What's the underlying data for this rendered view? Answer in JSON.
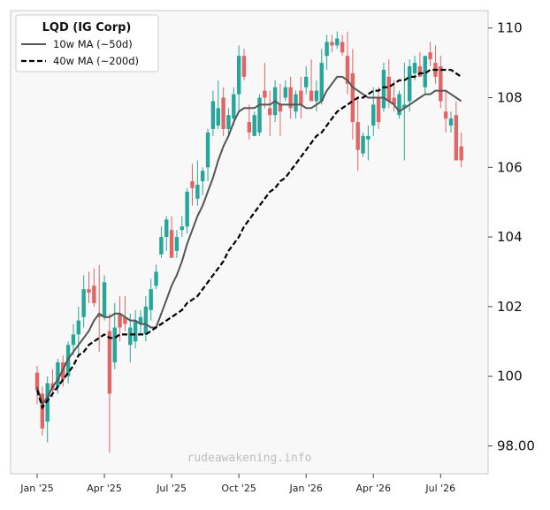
{
  "chart_data": {
    "type": "candlestick",
    "ticker_label": "LQD (IG Corp)",
    "watermark": "rudeawakening.info",
    "colors": {
      "up": "#26a69a",
      "down": "#e06666",
      "ma10": "#555555",
      "ma40": "#000000",
      "background": "#f8f8f8"
    },
    "y_axis": {
      "side": "right",
      "ylim": [
        97.2,
        110.5
      ],
      "ticks": [
        98,
        100,
        102,
        104,
        106,
        108,
        110
      ],
      "tick_labels": [
        "98.00",
        "100",
        "102",
        "104",
        "106",
        "108",
        "110"
      ]
    },
    "x_axis": {
      "tick_weeks": [
        0,
        13,
        26,
        39,
        52,
        65,
        78
      ],
      "tick_labels": [
        "Jan '25",
        "Apr '25",
        "Jul '25",
        "Oct '25",
        "Jan '26",
        "Apr '26",
        "Jul '26"
      ]
    },
    "legend": {
      "placement": "top-left",
      "entries": [
        {
          "label": "10w MA (~50d)",
          "style": "solid"
        },
        {
          "label": "40w MA (~200d)",
          "style": "dashed"
        }
      ]
    },
    "candles": [
      [
        100.1,
        100.3,
        99.2,
        99.6
      ],
      [
        99.5,
        99.7,
        98.3,
        98.5
      ],
      [
        98.7,
        100.0,
        98.1,
        99.8
      ],
      [
        99.8,
        100.2,
        99.4,
        99.6
      ],
      [
        99.7,
        100.5,
        99.5,
        100.4
      ],
      [
        100.4,
        100.6,
        99.7,
        99.9
      ],
      [
        100.0,
        101.0,
        99.8,
        100.9
      ],
      [
        100.9,
        101.5,
        100.6,
        101.2
      ],
      [
        101.2,
        102.0,
        100.6,
        101.6
      ],
      [
        101.7,
        102.9,
        101.4,
        102.5
      ],
      [
        102.5,
        103.0,
        102.1,
        102.4
      ],
      [
        102.6,
        103.1,
        102.0,
        102.1
      ],
      [
        101.8,
        103.2,
        100.7,
        101.7
      ],
      [
        101.7,
        102.9,
        101.6,
        102.7
      ],
      [
        101.3,
        101.8,
        97.8,
        99.5
      ],
      [
        100.4,
        102.1,
        100.2,
        101.4
      ],
      [
        101.8,
        102.3,
        101.0,
        101.4
      ],
      [
        101.7,
        102.3,
        101.3,
        101.5
      ],
      [
        100.9,
        101.8,
        100.4,
        101.4
      ],
      [
        101.0,
        101.9,
        100.8,
        101.6
      ],
      [
        101.5,
        101.9,
        101.2,
        101.7
      ],
      [
        101.2,
        102.3,
        101.0,
        102.0
      ],
      [
        101.9,
        102.8,
        101.6,
        102.5
      ],
      [
        102.6,
        103.2,
        102.5,
        103.0
      ],
      [
        103.5,
        104.3,
        103.4,
        104.0
      ],
      [
        104.0,
        104.6,
        103.6,
        104.5
      ],
      [
        104.2,
        104.6,
        103.5,
        103.4
      ],
      [
        103.6,
        104.2,
        103.4,
        104.0
      ],
      [
        104.2,
        104.6,
        104.0,
        104.3
      ],
      [
        104.3,
        105.4,
        104.1,
        105.3
      ],
      [
        105.6,
        106.1,
        104.9,
        105.4
      ],
      [
        105.1,
        106.2,
        104.9,
        105.5
      ],
      [
        105.6,
        106.0,
        105.2,
        105.9
      ],
      [
        106.0,
        107.1,
        105.6,
        107.0
      ],
      [
        107.1,
        108.2,
        106.9,
        107.9
      ],
      [
        107.2,
        108.5,
        107.1,
        107.7
      ],
      [
        108.0,
        108.3,
        106.9,
        107.1
      ],
      [
        107.1,
        107.7,
        106.9,
        107.5
      ],
      [
        107.4,
        108.3,
        107.2,
        108.1
      ],
      [
        108.1,
        109.5,
        107.6,
        109.2
      ],
      [
        109.2,
        109.4,
        108.5,
        108.6
      ],
      [
        107.3,
        107.8,
        106.8,
        107.0
      ],
      [
        106.9,
        107.6,
        106.9,
        107.5
      ],
      [
        107.0,
        108.1,
        106.9,
        108.0
      ],
      [
        108.2,
        109.0,
        107.7,
        108.0
      ],
      [
        107.7,
        108.2,
        106.9,
        107.5
      ],
      [
        107.5,
        108.5,
        107.3,
        108.3
      ],
      [
        107.8,
        108.4,
        106.9,
        107.6
      ],
      [
        108.0,
        108.5,
        107.9,
        108.3
      ],
      [
        108.3,
        108.6,
        107.4,
        107.7
      ],
      [
        107.6,
        108.2,
        107.4,
        108.1
      ],
      [
        108.2,
        108.6,
        107.4,
        107.8
      ],
      [
        108.3,
        108.9,
        108.1,
        108.6
      ],
      [
        108.2,
        109.1,
        107.9,
        107.9
      ],
      [
        107.9,
        108.5,
        107.6,
        108.2
      ],
      [
        107.9,
        109.4,
        107.8,
        109.0
      ],
      [
        109.2,
        109.8,
        108.8,
        109.6
      ],
      [
        109.6,
        109.8,
        109.3,
        109.5
      ],
      [
        109.5,
        109.9,
        109.4,
        109.7
      ],
      [
        109.6,
        109.8,
        109.2,
        109.3
      ],
      [
        109.2,
        109.9,
        108.1,
        108.4
      ],
      [
        108.7,
        109.4,
        106.8,
        107.3
      ],
      [
        107.3,
        108.0,
        105.9,
        106.5
      ],
      [
        106.4,
        107.0,
        106.3,
        106.9
      ],
      [
        106.8,
        107.2,
        106.2,
        106.9
      ],
      [
        107.2,
        108.3,
        106.9,
        107.8
      ],
      [
        108.0,
        108.3,
        107.1,
        107.3
      ],
      [
        107.7,
        109.0,
        107.6,
        108.8
      ],
      [
        108.6,
        109.1,
        107.7,
        107.9
      ],
      [
        108.0,
        108.5,
        107.6,
        107.8
      ],
      [
        107.5,
        108.2,
        107.4,
        108.1
      ],
      [
        107.7,
        109.0,
        106.2,
        107.8
      ],
      [
        107.9,
        109.1,
        107.6,
        108.9
      ],
      [
        108.7,
        109.2,
        108.5,
        109.0
      ],
      [
        108.9,
        109.3,
        108.6,
        108.6
      ],
      [
        108.3,
        109.2,
        108.1,
        109.2
      ],
      [
        109.3,
        109.6,
        108.9,
        109.1
      ],
      [
        109.0,
        109.5,
        108.4,
        108.6
      ],
      [
        108.9,
        109.2,
        107.7,
        107.9
      ],
      [
        107.6,
        108.2,
        107.0,
        107.4
      ],
      [
        107.2,
        107.6,
        107.0,
        107.4
      ],
      [
        107.5,
        107.9,
        106.2,
        106.2
      ],
      [
        106.6,
        107.0,
        106.0,
        106.2
      ]
    ],
    "ma10": [
      [
        0,
        99.7
      ],
      [
        1,
        99.2
      ],
      [
        2,
        99.4
      ],
      [
        3,
        99.7
      ],
      [
        4,
        99.9
      ],
      [
        5,
        100.2
      ],
      [
        6,
        100.5
      ],
      [
        7,
        100.7
      ],
      [
        8,
        100.9
      ],
      [
        9,
        101.1
      ],
      [
        10,
        101.3
      ],
      [
        11,
        101.6
      ],
      [
        12,
        101.8
      ],
      [
        13,
        101.7
      ],
      [
        14,
        101.7
      ],
      [
        15,
        101.8
      ],
      [
        16,
        101.8
      ],
      [
        17,
        101.7
      ],
      [
        18,
        101.6
      ],
      [
        19,
        101.6
      ],
      [
        20,
        101.5
      ],
      [
        21,
        101.5
      ],
      [
        22,
        101.4
      ],
      [
        23,
        101.4
      ],
      [
        24,
        101.8
      ],
      [
        25,
        102.2
      ],
      [
        26,
        102.6
      ],
      [
        27,
        102.9
      ],
      [
        28,
        103.3
      ],
      [
        29,
        103.8
      ],
      [
        30,
        104.2
      ],
      [
        31,
        104.6
      ],
      [
        32,
        104.9
      ],
      [
        33,
        105.3
      ],
      [
        34,
        105.7
      ],
      [
        35,
        106.2
      ],
      [
        36,
        106.6
      ],
      [
        37,
        106.9
      ],
      [
        38,
        107.3
      ],
      [
        39,
        107.6
      ],
      [
        40,
        107.7
      ],
      [
        41,
        107.7
      ],
      [
        42,
        107.7
      ],
      [
        43,
        107.8
      ],
      [
        44,
        107.8
      ],
      [
        45,
        107.8
      ],
      [
        46,
        107.9
      ],
      [
        47,
        107.8
      ],
      [
        48,
        107.8
      ],
      [
        49,
        107.8
      ],
      [
        50,
        107.8
      ],
      [
        51,
        107.8
      ],
      [
        52,
        107.7
      ],
      [
        53,
        107.7
      ],
      [
        54,
        107.8
      ],
      [
        55,
        107.9
      ],
      [
        56,
        108.2
      ],
      [
        57,
        108.4
      ],
      [
        58,
        108.6
      ],
      [
        59,
        108.6
      ],
      [
        60,
        108.5
      ],
      [
        61,
        108.3
      ],
      [
        62,
        108.2
      ],
      [
        63,
        108.1
      ],
      [
        64,
        108.0
      ],
      [
        65,
        108.0
      ],
      [
        66,
        108.0
      ],
      [
        67,
        108.0
      ],
      [
        68,
        107.9
      ],
      [
        69,
        107.8
      ],
      [
        70,
        107.6
      ],
      [
        71,
        107.7
      ],
      [
        72,
        107.8
      ],
      [
        73,
        107.9
      ],
      [
        74,
        108.0
      ],
      [
        75,
        108.1
      ],
      [
        76,
        108.1
      ],
      [
        77,
        108.2
      ],
      [
        78,
        108.2
      ],
      [
        79,
        108.2
      ],
      [
        80,
        108.1
      ],
      [
        81,
        108.0
      ],
      [
        82,
        107.9
      ]
    ],
    "ma40": [
      [
        0,
        99.6
      ],
      [
        1,
        99.1
      ],
      [
        2,
        99.3
      ],
      [
        3,
        99.5
      ],
      [
        4,
        99.7
      ],
      [
        5,
        99.9
      ],
      [
        6,
        100.1
      ],
      [
        7,
        100.3
      ],
      [
        8,
        100.6
      ],
      [
        9,
        100.7
      ],
      [
        10,
        100.9
      ],
      [
        11,
        101.0
      ],
      [
        12,
        101.1
      ],
      [
        13,
        101.2
      ],
      [
        14,
        101.1
      ],
      [
        15,
        101.1
      ],
      [
        16,
        101.2
      ],
      [
        17,
        101.2
      ],
      [
        18,
        101.2
      ],
      [
        19,
        101.2
      ],
      [
        20,
        101.2
      ],
      [
        21,
        101.2
      ],
      [
        22,
        101.3
      ],
      [
        23,
        101.4
      ],
      [
        24,
        101.5
      ],
      [
        25,
        101.6
      ],
      [
        26,
        101.7
      ],
      [
        27,
        101.8
      ],
      [
        28,
        101.9
      ],
      [
        29,
        102.1
      ],
      [
        30,
        102.2
      ],
      [
        31,
        102.3
      ],
      [
        32,
        102.5
      ],
      [
        33,
        102.7
      ],
      [
        34,
        102.9
      ],
      [
        35,
        103.1
      ],
      [
        36,
        103.3
      ],
      [
        37,
        103.6
      ],
      [
        38,
        103.8
      ],
      [
        39,
        104.0
      ],
      [
        40,
        104.3
      ],
      [
        41,
        104.5
      ],
      [
        42,
        104.7
      ],
      [
        43,
        104.9
      ],
      [
        44,
        105.1
      ],
      [
        45,
        105.3
      ],
      [
        46,
        105.4
      ],
      [
        47,
        105.6
      ],
      [
        48,
        105.7
      ],
      [
        49,
        105.9
      ],
      [
        50,
        106.1
      ],
      [
        51,
        106.3
      ],
      [
        52,
        106.5
      ],
      [
        53,
        106.7
      ],
      [
        54,
        106.9
      ],
      [
        55,
        107.0
      ],
      [
        56,
        107.2
      ],
      [
        57,
        107.4
      ],
      [
        58,
        107.6
      ],
      [
        59,
        107.7
      ],
      [
        60,
        107.8
      ],
      [
        61,
        107.9
      ],
      [
        62,
        108.0
      ],
      [
        63,
        108.0
      ],
      [
        64,
        108.1
      ],
      [
        65,
        108.2
      ],
      [
        66,
        108.2
      ],
      [
        67,
        108.3
      ],
      [
        68,
        108.3
      ],
      [
        69,
        108.4
      ],
      [
        70,
        108.5
      ],
      [
        71,
        108.5
      ],
      [
        72,
        108.6
      ],
      [
        73,
        108.6
      ],
      [
        74,
        108.7
      ],
      [
        75,
        108.7
      ],
      [
        76,
        108.8
      ],
      [
        77,
        108.8
      ],
      [
        78,
        108.8
      ],
      [
        79,
        108.8
      ],
      [
        80,
        108.8
      ],
      [
        81,
        108.7
      ],
      [
        82,
        108.6
      ]
    ]
  }
}
